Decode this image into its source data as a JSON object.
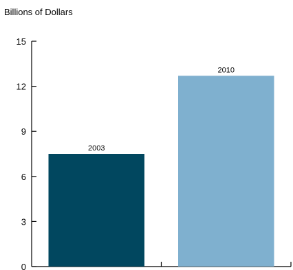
{
  "chart_data": {
    "type": "bar",
    "ylabel": "Billions of Dollars",
    "xlabel": "",
    "categories": [
      "2003",
      "2010"
    ],
    "values": [
      7.5,
      12.7
    ],
    "data_labels": [
      "2003",
      "2010"
    ],
    "bar_colors": [
      "#01475f",
      "#7fb0cf"
    ],
    "ylim": [
      0,
      15
    ],
    "yticks": [
      0,
      3,
      6,
      9,
      12,
      15
    ],
    "ytick_labels": [
      "0",
      "3",
      "6",
      "9",
      "12",
      "15"
    ],
    "grid": false,
    "legend": "none"
  }
}
